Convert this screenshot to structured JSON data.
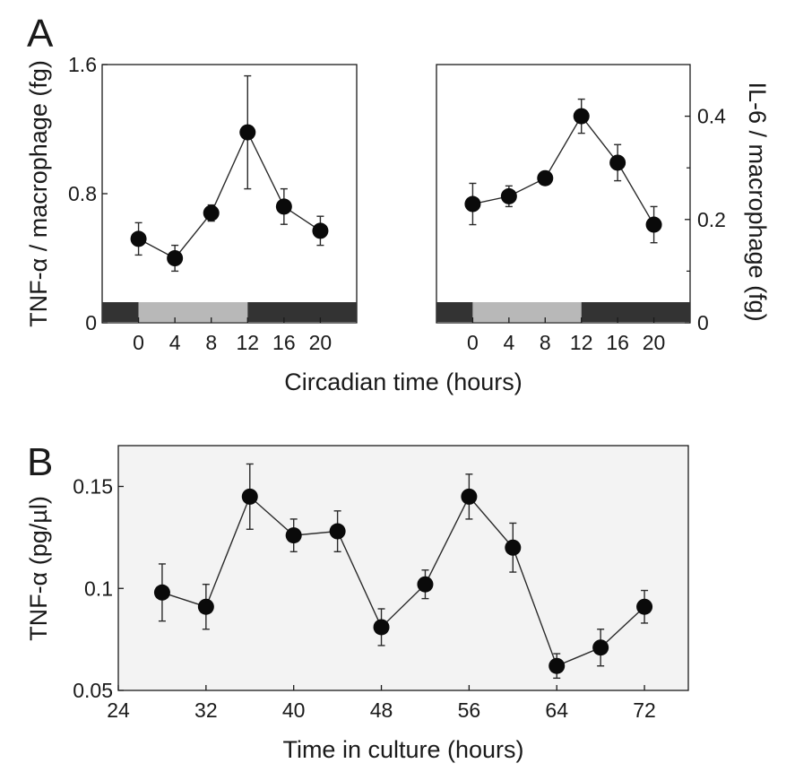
{
  "figure": {
    "panel_a_letter": "A",
    "panel_b_letter": "B"
  },
  "chart_data": [
    {
      "type": "line",
      "panel": "A-left",
      "title": "",
      "xlabel": "",
      "ylabel": "TNF-α / macrophage (fg)",
      "x": [
        0,
        4,
        8,
        12,
        16,
        20
      ],
      "x_ticks": [
        0,
        4,
        8,
        12,
        16,
        20
      ],
      "xlim": [
        -4,
        24
      ],
      "ylim": [
        0,
        1.6
      ],
      "y_ticks": [
        0,
        0.8,
        1.6
      ],
      "y_tick_labels": [
        "0",
        "0.8",
        "1.6"
      ],
      "series": [
        {
          "values": [
            0.52,
            0.4,
            0.68,
            1.18,
            0.72,
            0.57
          ],
          "errors": [
            0.1,
            0.08,
            0.05,
            0.35,
            0.11,
            0.09
          ]
        }
      ],
      "light_dark_bar": [
        {
          "from": -4,
          "to": 0,
          "shade": "dark"
        },
        {
          "from": 0,
          "to": 12,
          "shade": "light"
        },
        {
          "from": 12,
          "to": 24,
          "shade": "dark"
        }
      ],
      "grid": false
    },
    {
      "type": "line",
      "panel": "A-right",
      "title": "",
      "xlabel": "",
      "ylabel": "IL-6 / macrophage (fg)",
      "y_axis_side": "right",
      "x": [
        0,
        4,
        8,
        12,
        16,
        20
      ],
      "x_ticks": [
        0,
        4,
        8,
        12,
        16,
        20
      ],
      "xlim": [
        -4,
        24
      ],
      "ylim": [
        0,
        0.5
      ],
      "y_ticks": [
        0,
        0.2,
        0.4
      ],
      "y_tick_labels": [
        "0",
        "0.2",
        "0.4"
      ],
      "series": [
        {
          "values": [
            0.23,
            0.245,
            0.28,
            0.4,
            0.31,
            0.19
          ],
          "errors": [
            0.04,
            0.02,
            0.013,
            0.033,
            0.035,
            0.035
          ]
        }
      ],
      "light_dark_bar": [
        {
          "from": -4,
          "to": 0,
          "shade": "dark"
        },
        {
          "from": 0,
          "to": 12,
          "shade": "light"
        },
        {
          "from": 12,
          "to": 24,
          "shade": "dark"
        }
      ],
      "grid": false
    },
    {
      "type": "line",
      "panel": "B",
      "title": "",
      "xlabel": "Time in culture (hours)",
      "ylabel": "TNF-α (pg/µl)",
      "x": [
        28,
        32,
        36,
        40,
        44,
        48,
        52,
        56,
        60,
        64,
        68,
        72
      ],
      "x_ticks": [
        24,
        32,
        40,
        48,
        56,
        64,
        72
      ],
      "xlim": [
        24,
        76
      ],
      "ylim": [
        0.05,
        0.17
      ],
      "y_ticks": [
        0.05,
        0.1,
        0.15
      ],
      "y_tick_labels": [
        "0.05",
        "0.1",
        "0.15"
      ],
      "series": [
        {
          "values": [
            0.098,
            0.091,
            0.145,
            0.126,
            0.128,
            0.081,
            0.102,
            0.145,
            0.12,
            0.062,
            0.071,
            0.091
          ],
          "errors": [
            0.014,
            0.011,
            0.016,
            0.008,
            0.01,
            0.009,
            0.007,
            0.011,
            0.012,
            0.006,
            0.009,
            0.008
          ]
        }
      ],
      "grid": false
    }
  ],
  "shared": {
    "panel_a_xlabel": "Circadian time (hours)"
  },
  "colors": {
    "marker": "#0a0a0a",
    "line": "#2a2a2a",
    "axis": "#1a1a1a",
    "bar_dark": "#333333",
    "bar_light": "#b8b8b8",
    "panel_b_background": "#f3f3f3"
  }
}
